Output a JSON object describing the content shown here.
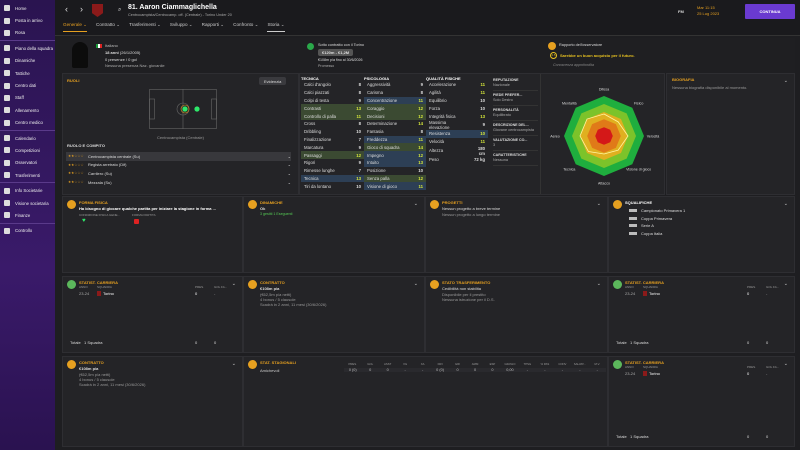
{
  "sidebar": {
    "items": [
      "Home",
      "Posta in arrivo",
      "Rosa",
      "Piano della squadra",
      "Dinamiche",
      "Tattiche",
      "Centro dati",
      "Staff",
      "Allenamento",
      "Centro medico",
      "Calendario",
      "Competizioni",
      "Osservatori",
      "Trasferimenti",
      "Info Societarie",
      "Visione societaria",
      "Finanze",
      "Controllo"
    ]
  },
  "header": {
    "title": "81. Aaron Ciammaglichella",
    "subtitle": "Centrocampista/Centrocamp. off. (Centrale) - Torino Under 20",
    "tabs": [
      "Generale",
      "Contratto",
      "Trasferimenti",
      "Sviluppo",
      "Rapporti",
      "Confronto",
      "Storia"
    ],
    "manager": "FM",
    "date_day": "Mar 11:15",
    "date": "25 Lug 2023",
    "continue": "CONTINUA"
  },
  "profile": {
    "nationality": "Italiano",
    "age": "18 anni",
    "birth": "(26/1/2005)",
    "apps": "0 presenze / 0 gol",
    "youth": "Nessuna presenza Naz. giovanile"
  },
  "contract_box": {
    "line1": "Sotto contratto con il Torino",
    "value": "€120m - €1,2M",
    "line2": "€108m p/a fino al 30/6/2026",
    "line3": "Promesso"
  },
  "scout": {
    "title": "Rapporto dell'osservatore",
    "rating": "2.5",
    "verdict": "Sarebbe un buon acquisto per il futuro.",
    "note": "Conoscenza approfondita"
  },
  "roles": {
    "title": "RUOLI",
    "highlight": "Evidenzia",
    "position": "Centrocampista (Centrale)",
    "section": "RUOLO E COMPITO",
    "list": [
      "Centrocampista centrale (Su)",
      "Regista arretrato (Dif)",
      "Carrilero (Su)",
      "Mezzala (Su)"
    ]
  },
  "attributes": {
    "tech_title": "TECNICA",
    "tech": [
      {
        "n": "Calci d'angolo",
        "v": "8"
      },
      {
        "n": "Calci piazzati",
        "v": "8"
      },
      {
        "n": "Colpi di testa",
        "v": "9"
      },
      {
        "n": "Contrasti",
        "v": "13",
        "hl": "g"
      },
      {
        "n": "Controllo di palla",
        "v": "11",
        "hl": "g"
      },
      {
        "n": "Cross",
        "v": "8"
      },
      {
        "n": "Dribbling",
        "v": "10"
      },
      {
        "n": "Finalizzazione",
        "v": "7"
      },
      {
        "n": "Marcatura",
        "v": "9"
      },
      {
        "n": "Passaggi",
        "v": "12",
        "hl": "g"
      },
      {
        "n": "Rigori",
        "v": "9"
      },
      {
        "n": "Rimesse lunghe",
        "v": "7"
      },
      {
        "n": "Tecnica",
        "v": "13",
        "hl": "b"
      },
      {
        "n": "Tiri da lontano",
        "v": "10"
      }
    ],
    "psy_title": "PSICOLOGIA",
    "psy": [
      {
        "n": "Aggressività",
        "v": "9"
      },
      {
        "n": "Carisma",
        "v": "8"
      },
      {
        "n": "Concentrazione",
        "v": "11",
        "hl": "b"
      },
      {
        "n": "Coraggio",
        "v": "12",
        "hl": "g"
      },
      {
        "n": "Decisioni",
        "v": "12",
        "hl": "g"
      },
      {
        "n": "Determinazione",
        "v": "14"
      },
      {
        "n": "Fantasia",
        "v": "8"
      },
      {
        "n": "Freddezza",
        "v": "11",
        "hl": "b"
      },
      {
        "n": "Gioco di squadra",
        "v": "14",
        "hl": "g"
      },
      {
        "n": "Impegno",
        "v": "12",
        "hl": "b"
      },
      {
        "n": "Intuito",
        "v": "13",
        "hl": "b"
      },
      {
        "n": "Posizione",
        "v": "10"
      },
      {
        "n": "Senza palla",
        "v": "12",
        "hl": "g"
      },
      {
        "n": "Visione di gioco",
        "v": "11",
        "hl": "b"
      }
    ],
    "phy_title": "QUALITÀ FISICHE",
    "phy": [
      {
        "n": "Accelerazione",
        "v": "11"
      },
      {
        "n": "Agilità",
        "v": "11"
      },
      {
        "n": "Equilibrio",
        "v": "10"
      },
      {
        "n": "Forza",
        "v": "10"
      },
      {
        "n": "Integrità fisica",
        "v": "13"
      },
      {
        "n": "Massima elevazione",
        "v": "9"
      },
      {
        "n": "Resistenza",
        "v": "10",
        "hl": "b"
      },
      {
        "n": "Velocità",
        "v": "11"
      },
      {
        "n": "Altezza",
        "v": "180 cm"
      },
      {
        "n": "Peso",
        "v": "72 kg"
      }
    ]
  },
  "info": [
    {
      "t": "REPUTAZIONE",
      "v": "Nazionale"
    },
    {
      "t": "PIEDE PREFER...",
      "v": "Solo Destro"
    },
    {
      "t": "PERSONALITÀ",
      "v": "Equilibrato"
    },
    {
      "t": "DESCRIZIONE DEL...",
      "v": "Giovane centrocampista"
    },
    {
      "t": "VALUTAZIONE CO...",
      "v": "3"
    },
    {
      "t": "CARATTERISTICHE",
      "v": "Nessuna"
    }
  ],
  "radar": {
    "labels": [
      "Difesa",
      "Fisico",
      "Velocità",
      "Visione di gioco",
      "Attacco",
      "Tecnica",
      "Aereo",
      "Mentalità"
    ],
    "values": [
      0.55,
      0.5,
      0.6,
      0.5,
      0.45,
      0.55,
      0.6,
      0.6
    ]
  },
  "bio": {
    "title": "BIOGRAFIA",
    "text": "Nessuna biografia disponibile al momento."
  },
  "cards": {
    "fitness": {
      "title": "FORMA FISICA",
      "text": "Ha bisogno di giocare qualche partita per iniziare la stagione in forma ...",
      "l1": "CONDIZIONE FISICA GENE...",
      "l2": "FORMA PARTITA"
    },
    "dyn": {
      "title": "DINAMICHE",
      "text": "Ok",
      "sub": "3 gestiti 1 Eseguenti"
    },
    "proj": {
      "title": "PROGETTI",
      "text": "Nessun progetto a breve termine",
      "sub": "Nessun progetto a lungo termine"
    },
    "susp": {
      "title": "SQUALIFICHE",
      "items": [
        "Campionato Primavera 1",
        "Coppa Primavera",
        "Serie A",
        "Coppa Italia"
      ]
    },
    "career": {
      "title": "STATIST. CARRIERA",
      "h_year": "ANNO",
      "h_team": "SQUADRA",
      "h_apps": "PRES.",
      "h_goals": "GOL FA...",
      "year": "23-24",
      "team": "Torino",
      "apps": "0",
      "goals": "-",
      "total": "Totale",
      "total_teams": "1 Squadra",
      "total_apps": "0",
      "total_goals": "0"
    },
    "contract": {
      "title": "CONTRATTO",
      "text": "€108m p/a",
      "l1": "(€62,5m p/a netti)",
      "l2": "4 bonus / 5 clausole",
      "l3": "Scadrà in 2 anni, 11 mesi (30/6/2026)"
    },
    "transfer": {
      "title": "STATO TRASFERIMENTO",
      "text": "Cedibilità non stabilita",
      "l1": "Disponibile per il prestito",
      "l2": "Nessuna istruzione per il D.S."
    },
    "season": {
      "title": "STAT. STAGIONALI",
      "row": "Amichevoli",
      "headers": [
        "PRES.",
        "GOL",
        "ASST",
        "XG",
        "XA",
        "DRI",
        "GRI",
        "AMM",
        "ESP",
        "GIR/GIO",
        "TPSG",
        "% PAS",
        "CONV",
        "SALVAT...",
        "M.V."
      ],
      "values": [
        "0 (0)",
        "0",
        "0",
        "-",
        "-",
        "0 (0)",
        "0",
        "0",
        "0",
        "0,00",
        "-",
        "-",
        "-",
        "-",
        "-"
      ]
    }
  }
}
